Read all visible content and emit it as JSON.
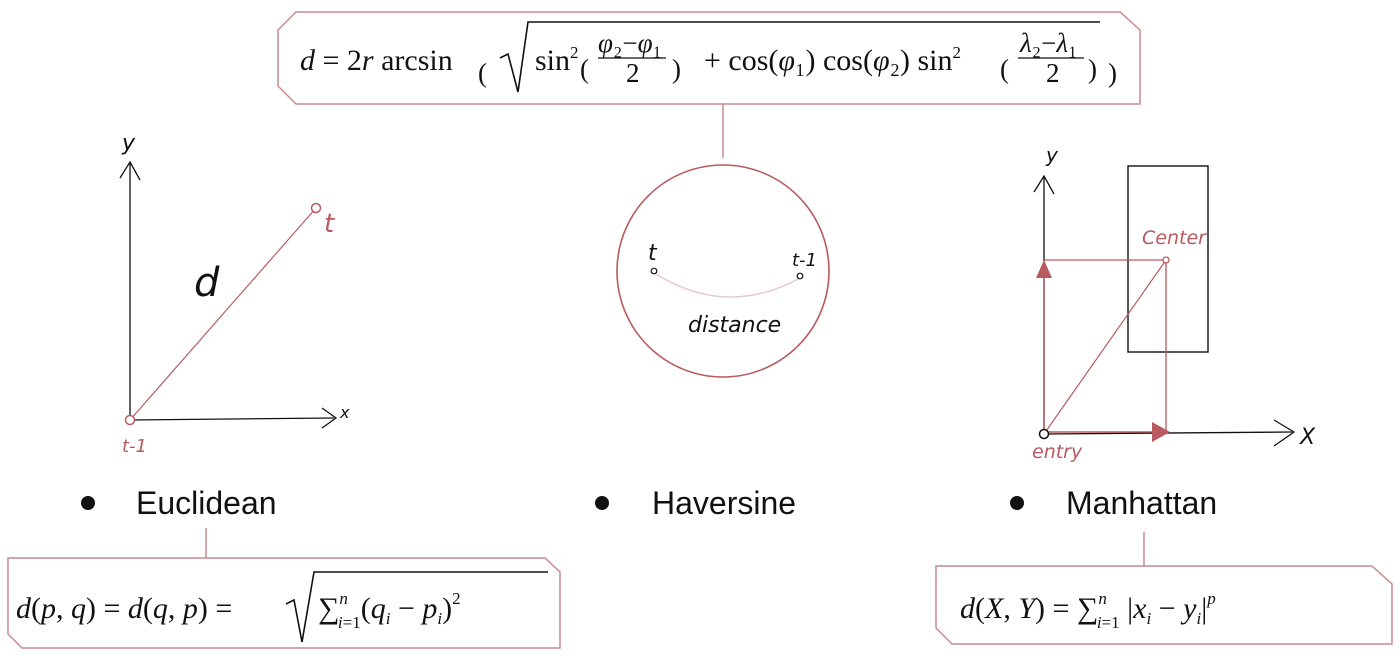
{
  "colors": {
    "accent": "#b85a5f",
    "ink": "#111111",
    "box_border": "#c98a8e"
  },
  "axes": {
    "y_label": "y",
    "x_label": "x",
    "x_label_upper": "X"
  },
  "euclidean": {
    "title": "Euclidean",
    "start_point": "t-1",
    "end_point": "t",
    "segment_label": "d",
    "formula": "d(p,q) = d(q,p) = √∑ᵢ₌₁ⁿ (qᵢ − pᵢ)²"
  },
  "haversine": {
    "title": "Haversine",
    "point_a": "t",
    "point_b": "t-1",
    "arc_label": "distance",
    "formula": "d = 2r arcsin( √( sin²((φ₂−φ₁)/2) + cos(φ₁) cos(φ₂) sin²((λ₂−λ₁)/2) ) )"
  },
  "manhattan": {
    "title": "Manhattan",
    "origin_point": "entry",
    "target_point": "Center",
    "formula": "d(X,Y) = ∑ᵢ₌₁ⁿ |xᵢ − yᵢ|ᵖ"
  }
}
